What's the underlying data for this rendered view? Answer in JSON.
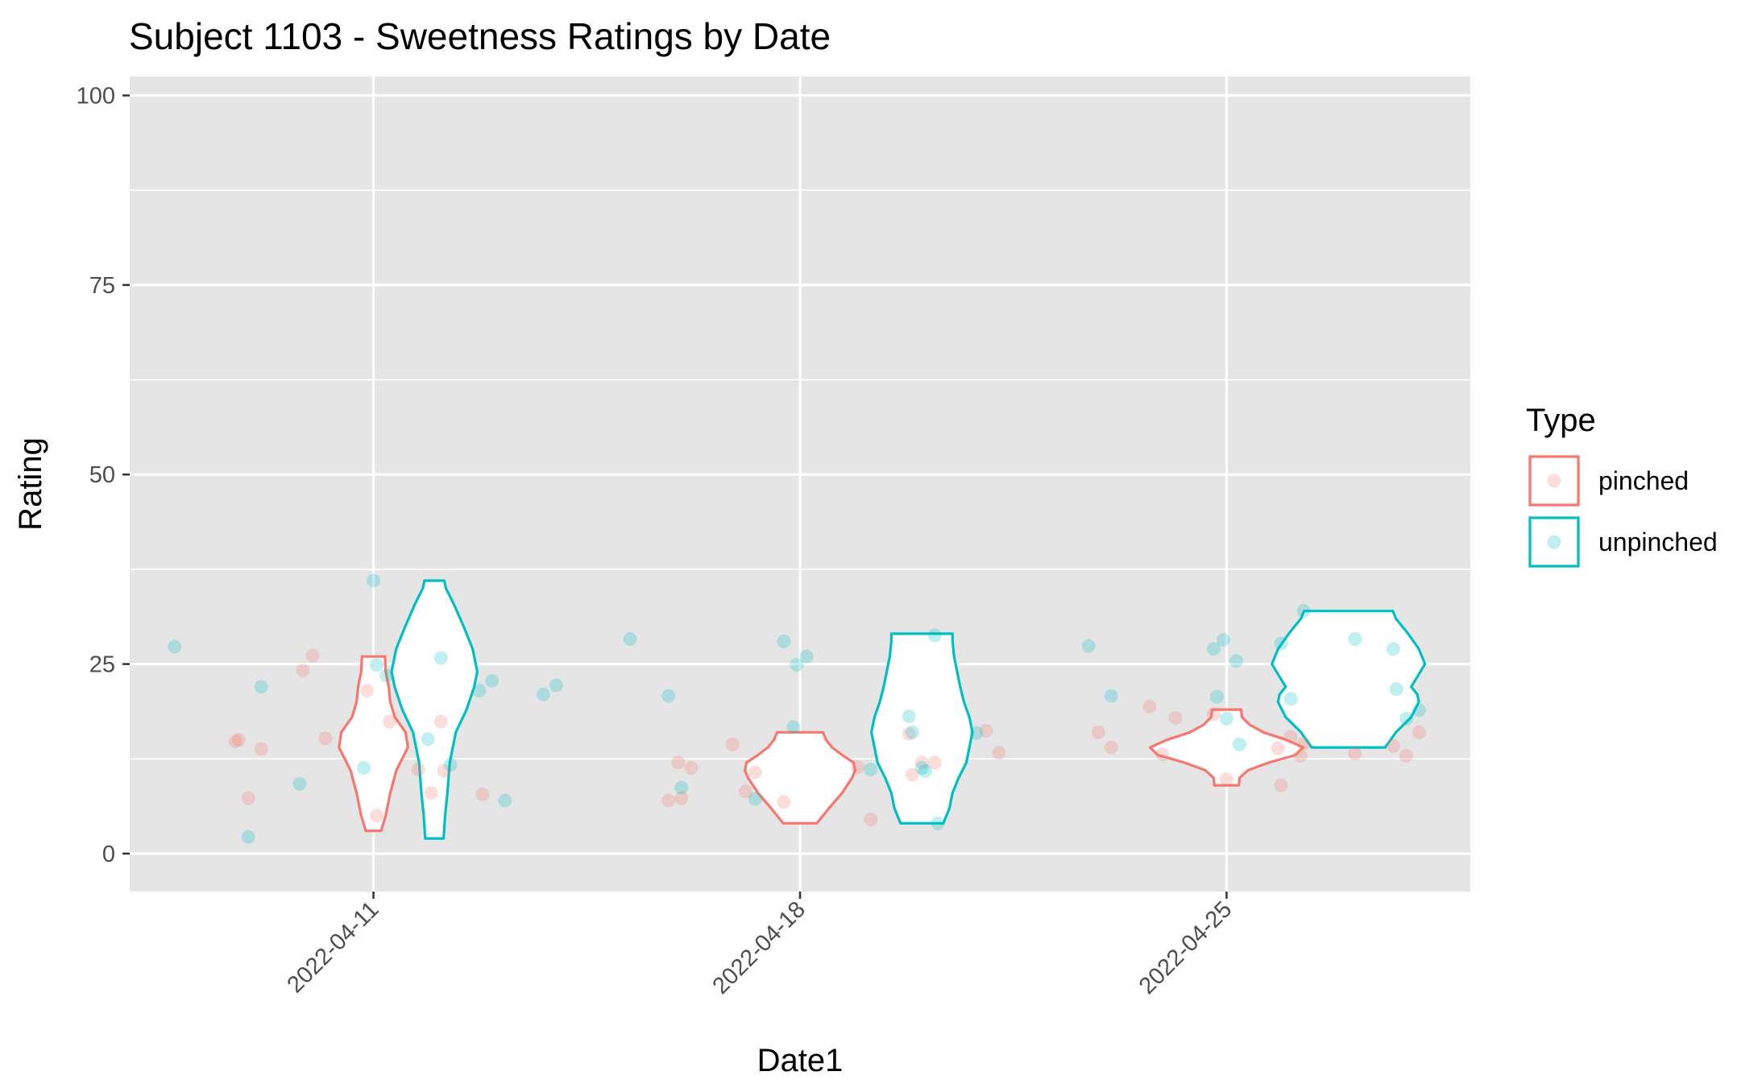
{
  "chart_data": {
    "type": "violin",
    "title": "Subject 1103 - Sweetness Ratings by Date",
    "xlabel": "Date1",
    "ylabel": "Rating",
    "ylim": [
      -5,
      100
    ],
    "y_ticks": [
      0,
      25,
      50,
      75,
      100
    ],
    "x_ticks": [
      "2022-04-11",
      "2022-04-18",
      "2022-04-25"
    ],
    "x_range": [
      "2022-04-07",
      "2022-04-29"
    ],
    "grid": true,
    "panel_background": "#e5e5e5",
    "legend": {
      "title": "Type",
      "position": "right",
      "entries": [
        {
          "name": "pinched",
          "color": "#F8766D"
        },
        {
          "name": "unpinched",
          "color": "#00BFC4"
        }
      ]
    },
    "series": [
      {
        "name": "pinched",
        "color": "#F8766D",
        "violins": [
          {
            "date": "2022-04-11",
            "min": 3,
            "max": 26,
            "profile": [
              [
                3,
                0.1
              ],
              [
                5,
                0.16
              ],
              [
                8,
                0.22
              ],
              [
                11,
                0.3
              ],
              [
                14,
                0.45
              ],
              [
                16,
                0.42
              ],
              [
                18,
                0.28
              ],
              [
                20,
                0.22
              ],
              [
                22,
                0.2
              ],
              [
                24,
                0.16
              ],
              [
                26,
                0.15
              ]
            ]
          },
          {
            "date": "2022-04-18",
            "min": 4,
            "max": 16,
            "profile": [
              [
                4,
                0.22
              ],
              [
                5,
                0.3
              ],
              [
                6,
                0.38
              ],
              [
                8,
                0.55
              ],
              [
                10,
                0.68
              ],
              [
                11,
                0.72
              ],
              [
                12,
                0.7
              ],
              [
                13,
                0.55
              ],
              [
                14,
                0.42
              ],
              [
                15,
                0.34
              ],
              [
                16,
                0.3
              ]
            ]
          },
          {
            "date": "2022-04-25",
            "min": 9,
            "max": 19,
            "profile": [
              [
                9,
                0.16
              ],
              [
                10,
                0.17
              ],
              [
                11,
                0.28
              ],
              [
                12,
                0.55
              ],
              [
                13,
                0.9
              ],
              [
                14,
                1.0
              ],
              [
                15,
                0.78
              ],
              [
                16,
                0.48
              ],
              [
                17,
                0.3
              ],
              [
                18,
                0.2
              ],
              [
                19,
                0.19
              ]
            ]
          }
        ],
        "points": [
          {
            "x": "2022-04-09",
            "y": 14.8
          },
          {
            "x": "2022-04-09",
            "y": 7.3
          },
          {
            "x": "2022-04-09",
            "y": 13.8
          },
          {
            "x": "2022-04-09",
            "y": 15.0
          },
          {
            "x": "2022-04-10",
            "y": 26.1
          },
          {
            "x": "2022-04-10",
            "y": 15.2
          },
          {
            "x": "2022-04-10",
            "y": 24.2
          },
          {
            "x": "2022-04-11",
            "y": 5.0
          },
          {
            "x": "2022-04-11",
            "y": 17.4
          },
          {
            "x": "2022-04-11",
            "y": 21.5
          },
          {
            "x": "2022-04-12",
            "y": 17.4
          },
          {
            "x": "2022-04-12",
            "y": 11.1
          },
          {
            "x": "2022-04-12",
            "y": 8.0
          },
          {
            "x": "2022-04-12",
            "y": 10.9
          },
          {
            "x": "2022-04-13",
            "y": 7.8
          },
          {
            "x": "2022-04-16",
            "y": 12.0
          },
          {
            "x": "2022-04-16",
            "y": 11.3
          },
          {
            "x": "2022-04-16",
            "y": 7.0
          },
          {
            "x": "2022-04-16",
            "y": 7.3
          },
          {
            "x": "2022-04-17",
            "y": 10.7
          },
          {
            "x": "2022-04-17",
            "y": 14.4
          },
          {
            "x": "2022-04-17",
            "y": 8.2
          },
          {
            "x": "2022-04-18",
            "y": 6.8
          },
          {
            "x": "2022-04-19",
            "y": 11.4
          },
          {
            "x": "2022-04-19",
            "y": 4.5
          },
          {
            "x": "2022-04-20",
            "y": 15.8
          },
          {
            "x": "2022-04-20",
            "y": 12.0
          },
          {
            "x": "2022-04-20",
            "y": 12.0
          },
          {
            "x": "2022-04-20",
            "y": 10.4
          },
          {
            "x": "2022-04-21",
            "y": 16.2
          },
          {
            "x": "2022-04-21",
            "y": 13.3
          },
          {
            "x": "2022-04-23",
            "y": 16.0
          },
          {
            "x": "2022-04-23",
            "y": 14.0
          },
          {
            "x": "2022-04-24",
            "y": 19.4
          },
          {
            "x": "2022-04-24",
            "y": 13.1
          },
          {
            "x": "2022-04-24",
            "y": 17.9
          },
          {
            "x": "2022-04-25",
            "y": 18.4
          },
          {
            "x": "2022-04-25",
            "y": 9.8
          },
          {
            "x": "2022-04-26",
            "y": 12.9
          },
          {
            "x": "2022-04-26",
            "y": 13.9
          },
          {
            "x": "2022-04-26",
            "y": 15.4
          },
          {
            "x": "2022-04-26",
            "y": 14.5
          },
          {
            "x": "2022-04-26",
            "y": 9.0
          },
          {
            "x": "2022-04-27",
            "y": 13.2
          },
          {
            "x": "2022-04-28",
            "y": 14.2
          },
          {
            "x": "2022-04-28",
            "y": 12.9
          },
          {
            "x": "2022-04-28",
            "y": 16.0
          }
        ]
      },
      {
        "name": "unpinched",
        "color": "#00BFC4",
        "violins": [
          {
            "date": "2022-04-12",
            "min": 2,
            "max": 36,
            "profile": [
              [
                2,
                0.12
              ],
              [
                5,
                0.14
              ],
              [
                8,
                0.17
              ],
              [
                12,
                0.2
              ],
              [
                16,
                0.28
              ],
              [
                19,
                0.42
              ],
              [
                22,
                0.52
              ],
              [
                24,
                0.56
              ],
              [
                27,
                0.5
              ],
              [
                30,
                0.38
              ],
              [
                33,
                0.25
              ],
              [
                35,
                0.15
              ],
              [
                36,
                0.13
              ]
            ]
          },
          {
            "date": "2022-04-20",
            "min": 4,
            "max": 29,
            "profile": [
              [
                4,
                0.28
              ],
              [
                6,
                0.36
              ],
              [
                8,
                0.4
              ],
              [
                10,
                0.48
              ],
              [
                12,
                0.58
              ],
              [
                14,
                0.62
              ],
              [
                16,
                0.66
              ],
              [
                18,
                0.62
              ],
              [
                20,
                0.55
              ],
              [
                22,
                0.5
              ],
              [
                24,
                0.46
              ],
              [
                26,
                0.42
              ],
              [
                28,
                0.4
              ],
              [
                29,
                0.4
              ]
            ]
          },
          {
            "date": "2022-04-27",
            "min": 14,
            "max": 32,
            "profile": [
              [
                14,
                0.48
              ],
              [
                16,
                0.62
              ],
              [
                18,
                0.82
              ],
              [
                20,
                0.92
              ],
              [
                21,
                0.9
              ],
              [
                22,
                0.82
              ],
              [
                23,
                0.88
              ],
              [
                25,
                1.0
              ],
              [
                27,
                0.92
              ],
              [
                29,
                0.78
              ],
              [
                31,
                0.62
              ],
              [
                32,
                0.58
              ]
            ]
          }
        ],
        "points": [
          {
            "x": "2022-04-08",
            "y": 27.3
          },
          {
            "x": "2022-04-09",
            "y": 2.2
          },
          {
            "x": "2022-04-09",
            "y": 22.0
          },
          {
            "x": "2022-04-10",
            "y": 9.2
          },
          {
            "x": "2022-04-11",
            "y": 36.0
          },
          {
            "x": "2022-04-11",
            "y": 23.5
          },
          {
            "x": "2022-04-11",
            "y": 11.3
          },
          {
            "x": "2022-04-11",
            "y": 24.9
          },
          {
            "x": "2022-04-12",
            "y": 11.7
          },
          {
            "x": "2022-04-12",
            "y": 15.1
          },
          {
            "x": "2022-04-12",
            "y": 25.8
          },
          {
            "x": "2022-04-13",
            "y": 21.5
          },
          {
            "x": "2022-04-13",
            "y": 22.8
          },
          {
            "x": "2022-04-13",
            "y": 7.0
          },
          {
            "x": "2022-04-14",
            "y": 21.0
          },
          {
            "x": "2022-04-14",
            "y": 22.2
          },
          {
            "x": "2022-04-15",
            "y": 28.3
          },
          {
            "x": "2022-04-16",
            "y": 20.8
          },
          {
            "x": "2022-04-16",
            "y": 8.7
          },
          {
            "x": "2022-04-17",
            "y": 7.2
          },
          {
            "x": "2022-04-18",
            "y": 16.7
          },
          {
            "x": "2022-04-18",
            "y": 26.0
          },
          {
            "x": "2022-04-18",
            "y": 28.0
          },
          {
            "x": "2022-04-18",
            "y": 24.9
          },
          {
            "x": "2022-04-19",
            "y": 11.1
          },
          {
            "x": "2022-04-20",
            "y": 18.1
          },
          {
            "x": "2022-04-20",
            "y": 11.3
          },
          {
            "x": "2022-04-20",
            "y": 28.8
          },
          {
            "x": "2022-04-20",
            "y": 16.0
          },
          {
            "x": "2022-04-20",
            "y": 10.9
          },
          {
            "x": "2022-04-20",
            "y": 4.0
          },
          {
            "x": "2022-04-21",
            "y": 15.9
          },
          {
            "x": "2022-04-23",
            "y": 20.8
          },
          {
            "x": "2022-04-23",
            "y": 27.4
          },
          {
            "x": "2022-04-25",
            "y": 28.2
          },
          {
            "x": "2022-04-25",
            "y": 25.4
          },
          {
            "x": "2022-04-25",
            "y": 27.0
          },
          {
            "x": "2022-04-25",
            "y": 17.8
          },
          {
            "x": "2022-04-25",
            "y": 14.4
          },
          {
            "x": "2022-04-25",
            "y": 20.7
          },
          {
            "x": "2022-04-26",
            "y": 20.4
          },
          {
            "x": "2022-04-26",
            "y": 32.0
          },
          {
            "x": "2022-04-26",
            "y": 27.7
          },
          {
            "x": "2022-04-27",
            "y": 28.3
          },
          {
            "x": "2022-04-28",
            "y": 27.0
          },
          {
            "x": "2022-04-28",
            "y": 17.8
          },
          {
            "x": "2022-04-28",
            "y": 18.9
          },
          {
            "x": "2022-04-28",
            "y": 21.7
          }
        ]
      }
    ]
  }
}
